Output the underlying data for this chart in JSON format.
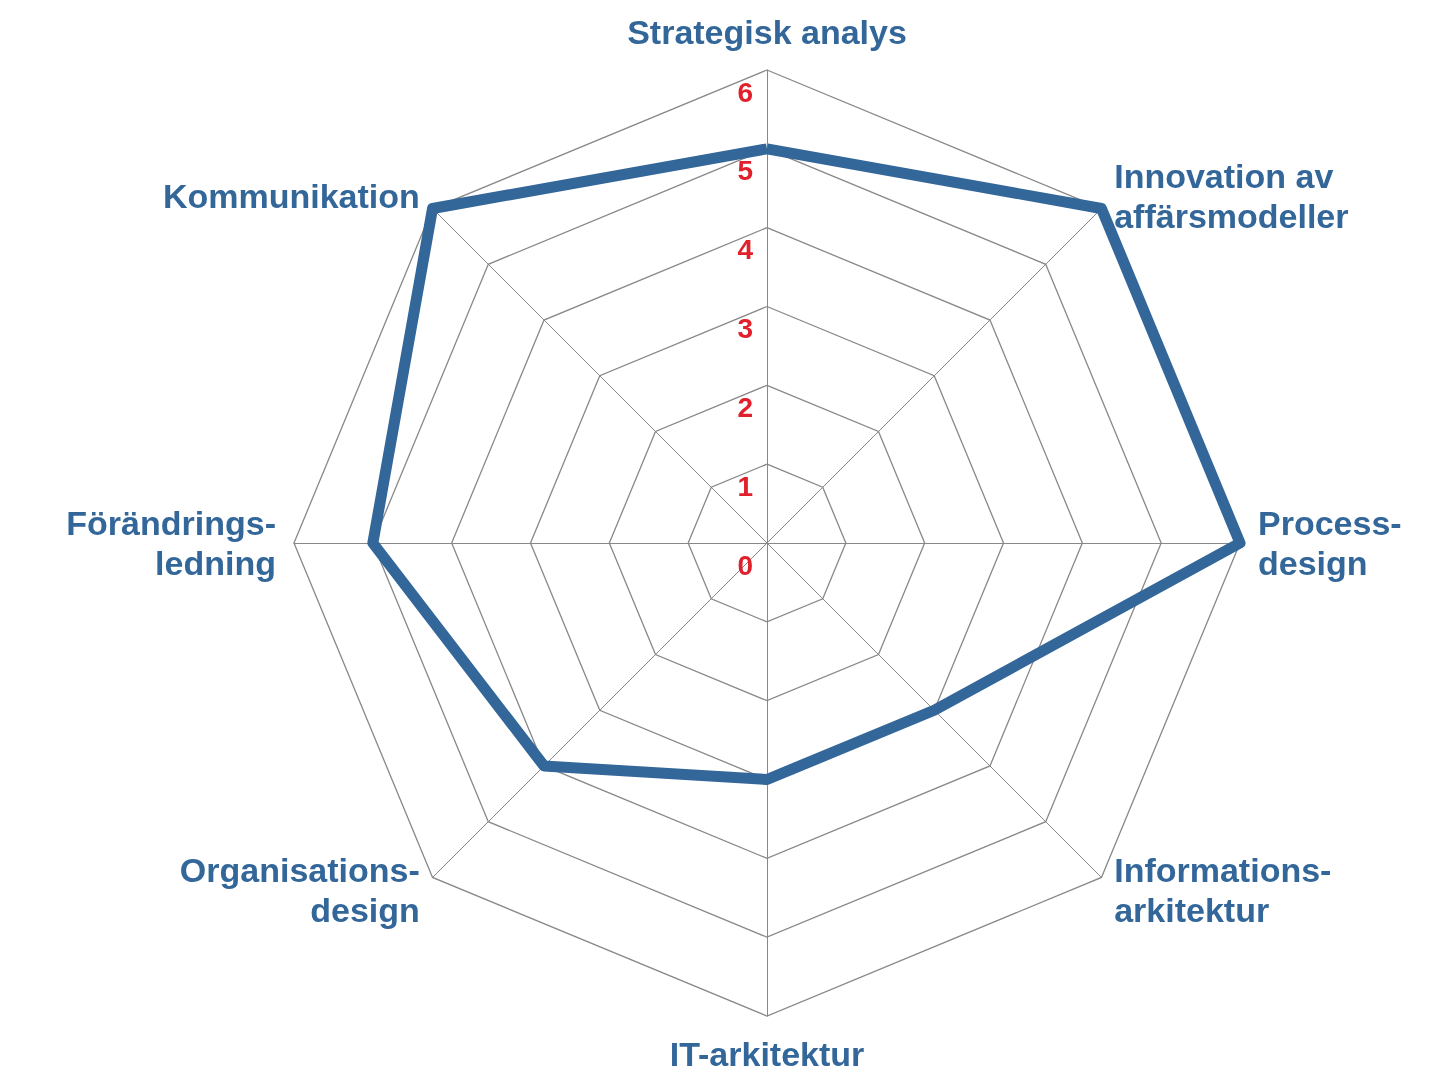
{
  "chart_data": {
    "type": "radar",
    "categories": [
      "Strategisk analys",
      "Innovation av\naffärsmodeller",
      "Process-\ndesign",
      "Informations-\narkitektur",
      "IT-arkitektur",
      "Organisations-\ndesign",
      "Förändrings-\nledning",
      "Kommunikation"
    ],
    "series": [
      {
        "color": "#336699",
        "values": [
          5,
          6,
          6,
          3,
          3,
          4,
          5,
          6
        ]
      }
    ],
    "ylim": [
      0,
      6
    ],
    "yticks": [
      0,
      1,
      2,
      3,
      4,
      5,
      6
    ],
    "marker": "none",
    "line_style": "solid",
    "grid": true
  }
}
